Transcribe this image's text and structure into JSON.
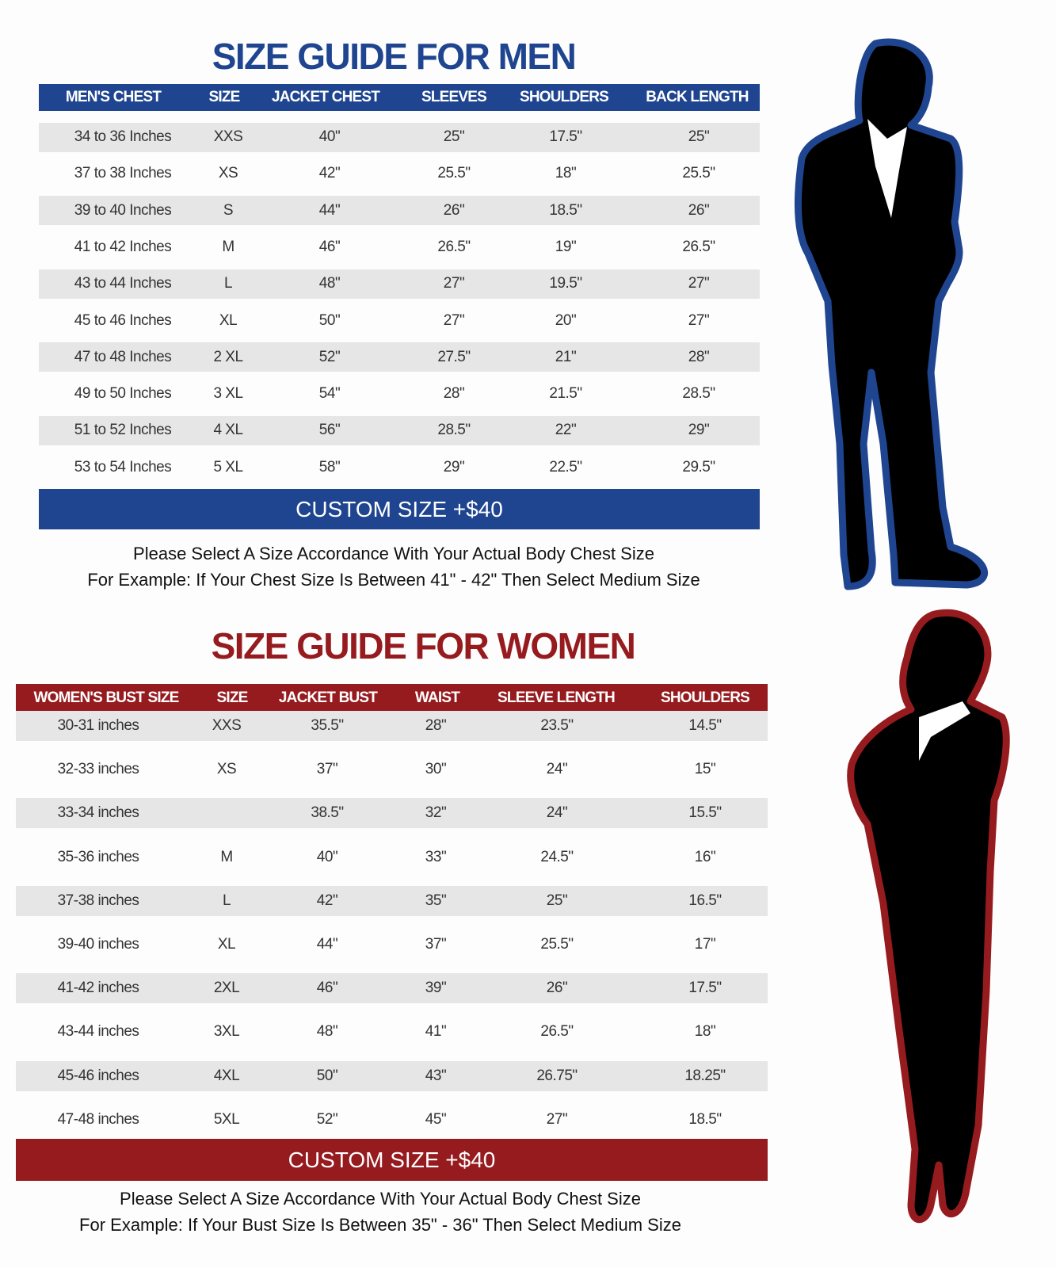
{
  "men": {
    "title": "SIZE GUIDE FOR MEN",
    "headers": [
      "MEN'S CHEST",
      "SIZE",
      "JACKET CHEST",
      "SLEEVES",
      "SHOULDERS",
      "BACK LENGTH"
    ],
    "rows": [
      [
        "34 to 36 Inches",
        "XXS",
        "40\"",
        "25\"",
        "17.5\"",
        "25\""
      ],
      [
        "37 to 38 Inches",
        "XS",
        "42\"",
        "25.5\"",
        "18\"",
        "25.5\""
      ],
      [
        "39 to 40 Inches",
        "S",
        "44\"",
        "26\"",
        "18.5\"",
        "26\""
      ],
      [
        "41 to 42 Inches",
        "M",
        "46\"",
        "26.5\"",
        "19\"",
        "26.5\""
      ],
      [
        "43 to 44 Inches",
        "L",
        "48\"",
        "27\"",
        "19.5\"",
        "27\""
      ],
      [
        "45 to 46 Inches",
        "XL",
        "50\"",
        "27\"",
        "20\"",
        "27\""
      ],
      [
        "47 to 48 Inches",
        "2 XL",
        "52\"",
        "27.5\"",
        "21\"",
        "28\""
      ],
      [
        "49 to 50 Inches",
        "3 XL",
        "54\"",
        "28\"",
        "21.5\"",
        "28.5\""
      ],
      [
        "51 to 52 Inches",
        "4 XL",
        "56\"",
        "28.5\"",
        "22\"",
        "29\""
      ],
      [
        "53 to 54 Inches",
        "5 XL",
        "58\"",
        "29\"",
        "22.5\"",
        "29.5\""
      ]
    ],
    "custom": "CUSTOM SIZE +$40",
    "notes": [
      "Please Select A Size Accordance With Your Actual Body Chest Size",
      "For Example: If Your Chest Size Is Between 41\" - 42\" Then Select Medium Size"
    ]
  },
  "women": {
    "title": "SIZE GUIDE FOR WOMEN",
    "headers": [
      "WOMEN'S BUST SIZE",
      "SIZE",
      "JACKET BUST",
      "WAIST",
      "SLEEVE LENGTH",
      "SHOULDERS"
    ],
    "rows": [
      [
        "30-31 inches",
        "XXS",
        "35.5\"",
        "28\"",
        "23.5\"",
        "14.5\""
      ],
      [
        "32-33 inches",
        "XS",
        "37\"",
        "30\"",
        "24\"",
        "15\""
      ],
      [
        "33-34 inches",
        null,
        "38.5\"",
        "32\"",
        "24\"",
        "15.5\""
      ],
      [
        "35-36 inches",
        "M",
        "40\"",
        "33\"",
        "24.5\"",
        "16\""
      ],
      [
        "37-38 inches",
        "L",
        "42\"",
        "35\"",
        "25\"",
        "16.5\""
      ],
      [
        "39-40 inches",
        "XL",
        "44\"",
        "37\"",
        "25.5\"",
        "17\""
      ],
      [
        "41-42 inches",
        "2XL",
        "46\"",
        "39\"",
        "26\"",
        "17.5\""
      ],
      [
        "43-44 inches",
        "3XL",
        "48\"",
        "41\"",
        "26.5\"",
        "18\""
      ],
      [
        "45-46 inches",
        "4XL",
        "50\"",
        "43\"",
        "26.75\"",
        "18.25\""
      ],
      [
        "47-48 inches",
        "5XL",
        "52\"",
        "45\"",
        "27\"",
        "18.5\""
      ]
    ],
    "custom": "CUSTOM SIZE +$40",
    "notes": [
      "Please Select A Size Accordance With Your Actual Body Chest Size",
      "For Example: If Your Bust Size Is Between 35\" - 36\" Then Select Medium Size"
    ]
  }
}
